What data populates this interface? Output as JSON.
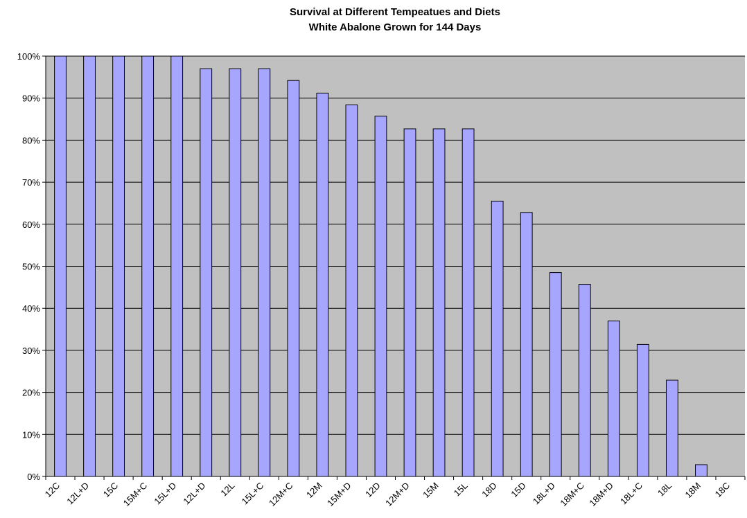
{
  "chart_data": {
    "type": "bar",
    "title": "Survival at Different Tempeatues and Diets",
    "subtitle": "White Abalone Grown for 144 Days",
    "categories": [
      "12C",
      "12L+D",
      "15C",
      "15M+C",
      "15L+D",
      "12L+D",
      "12L",
      "15L+C",
      "12M+C",
      "12M",
      "15M+D",
      "12D",
      "12M+D",
      "15M",
      "15L",
      "18D",
      "15D",
      "18L+D",
      "18M+C",
      "18M+D",
      "18L+C",
      "18L",
      "18M",
      "18C"
    ],
    "values": [
      100,
      100,
      100,
      100,
      100,
      97,
      97,
      97,
      94.2,
      91.2,
      88.4,
      85.7,
      82.7,
      82.7,
      82.7,
      65.5,
      62.8,
      48.5,
      45.7,
      37,
      31.4,
      22.9,
      2.8,
      0
    ],
    "color": "#a6a6ff",
    "ylim": [
      0,
      100
    ],
    "yticks": [
      {
        "value": 0,
        "label": "0%"
      },
      {
        "value": 10,
        "label": "10%"
      },
      {
        "value": 20,
        "label": "20%"
      },
      {
        "value": 30,
        "label": "30%"
      },
      {
        "value": 40,
        "label": "40%"
      },
      {
        "value": 50,
        "label": "50%"
      },
      {
        "value": 60,
        "label": "60%"
      },
      {
        "value": 70,
        "label": "70%"
      },
      {
        "value": 80,
        "label": "80%"
      },
      {
        "value": 90,
        "label": "90%"
      },
      {
        "value": 100,
        "label": "100%"
      }
    ],
    "grid": true
  }
}
